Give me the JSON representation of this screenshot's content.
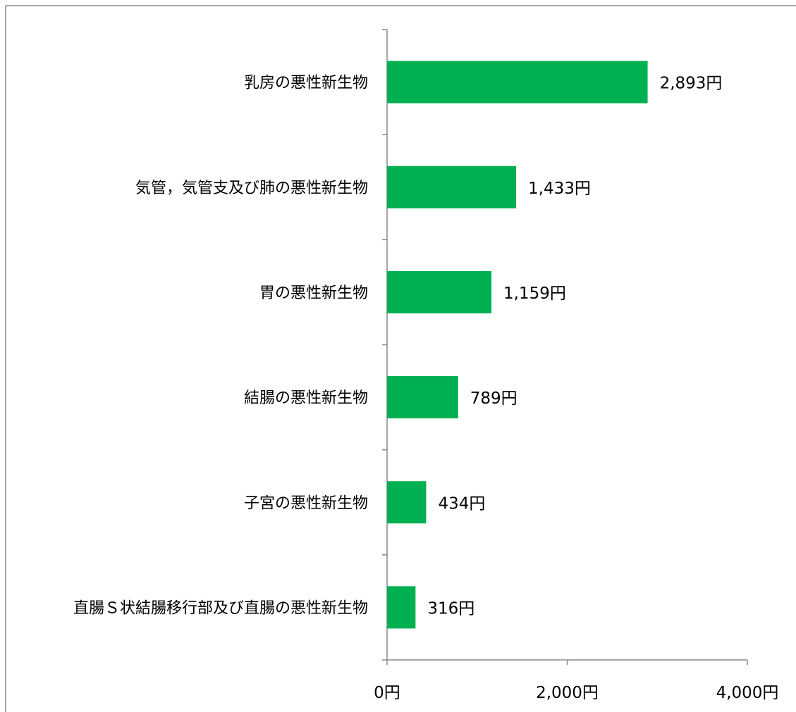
{
  "chart_data": {
    "type": "bar",
    "orientation": "horizontal",
    "categories": [
      "乳房の悪性新生物",
      "気管，気管支及び肺の悪性新生物",
      "胃の悪性新生物",
      "結腸の悪性新生物",
      "子宮の悪性新生物",
      "直腸Ｓ状結腸移行部及び直腸の悪性新生物"
    ],
    "values": [
      2893,
      1433,
      1159,
      789,
      434,
      316
    ],
    "data_labels": [
      "2,893円",
      "1,433円",
      "1,159円",
      "789円",
      "434円",
      "316円"
    ],
    "x_ticks": [
      0,
      2000,
      4000
    ],
    "x_tick_labels": [
      "0円",
      "2,000円",
      "4,000円"
    ],
    "xlim": [
      0,
      4000
    ],
    "grid": false,
    "legend": "none",
    "colors": {
      "bar": "#00b050",
      "axis": "#898989",
      "border": "#898989"
    }
  }
}
